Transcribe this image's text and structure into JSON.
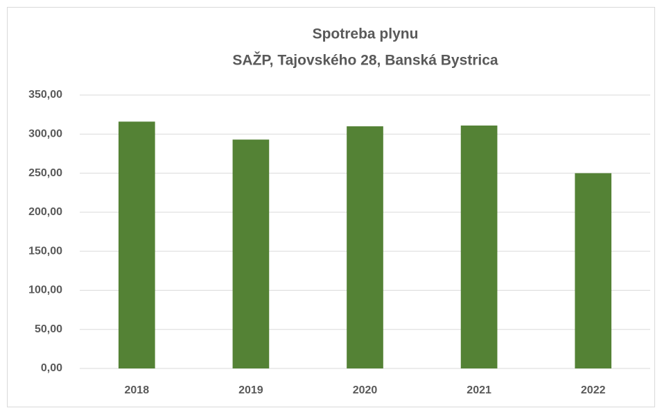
{
  "chart_data": {
    "type": "bar",
    "title": "Spotreba plynu",
    "subtitle": "SAŽP, Tajovského 28, Banská Bystrica",
    "categories": [
      "2018",
      "2019",
      "2020",
      "2021",
      "2022"
    ],
    "values": [
      316,
      293,
      310,
      311,
      250
    ],
    "color": "#548235",
    "ylim": [
      0,
      350
    ],
    "yticks": [
      {
        "value": 0,
        "label": "0,00"
      },
      {
        "value": 50,
        "label": "50,00"
      },
      {
        "value": 100,
        "label": "100,00"
      },
      {
        "value": 150,
        "label": "150,00"
      },
      {
        "value": 200,
        "label": "200,00"
      },
      {
        "value": 250,
        "label": "250,00"
      },
      {
        "value": 300,
        "label": "300,00"
      },
      {
        "value": 350,
        "label": "350,00"
      }
    ],
    "grid": true
  }
}
